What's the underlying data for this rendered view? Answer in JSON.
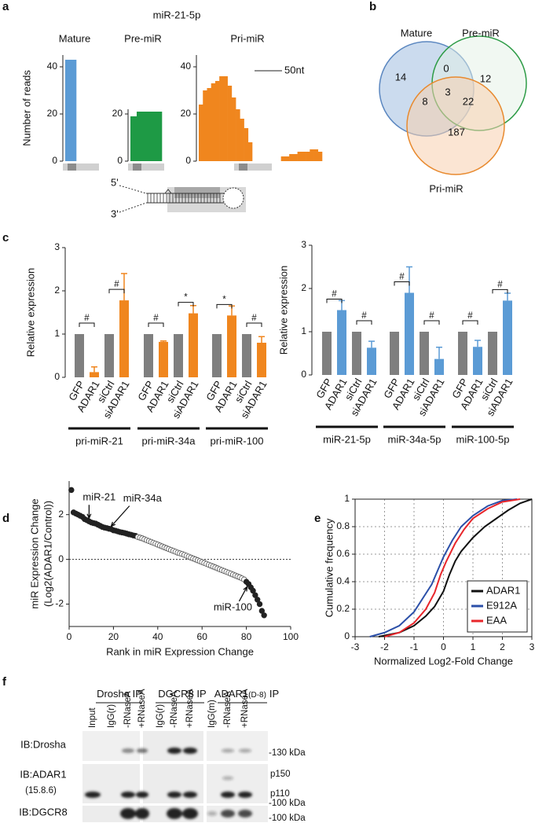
{
  "panel_labels": [
    "a",
    "b",
    "c",
    "d",
    "e",
    "f"
  ],
  "panel_a": {
    "title": "miR-21-5p",
    "scale_bar": "50nt",
    "hairpin_5": "5'",
    "hairpin_3": "3'"
  },
  "venn": {
    "sets": [
      "Mature",
      "Pre-miR",
      "Pri-miR"
    ],
    "counts": {
      "mature_only": "14",
      "mature_pre": "0",
      "pre_only": "12",
      "mature_pri": "8",
      "all": "3",
      "pre_pri": "22",
      "pri_only": "187"
    }
  },
  "chart_data": [
    {
      "type": "bar",
      "title": "Mature",
      "ylabel": "Number of reads",
      "values": [
        43
      ],
      "color": "#5b9bd5",
      "ylim": [
        0,
        45
      ],
      "yticks": [
        0,
        20,
        40
      ]
    },
    {
      "type": "bar",
      "title": "Pre-miR",
      "values": [
        19,
        21,
        21,
        21,
        21
      ],
      "color": "#1e9a45",
      "ylim": [
        0,
        22
      ],
      "yticks": [
        0,
        20
      ]
    },
    {
      "type": "bar",
      "title": "Pri-miR",
      "values": [
        24,
        30,
        31,
        33,
        34,
        36,
        36,
        32,
        27,
        22,
        18,
        14,
        8,
        0,
        0,
        0,
        0,
        0,
        0,
        0,
        2,
        2,
        3,
        3,
        4,
        4,
        4,
        5,
        5,
        4
      ],
      "color": "#f0861e",
      "ylim": [
        0,
        45
      ],
      "yticks": [
        0,
        20,
        40
      ]
    },
    {
      "type": "grouped_bar",
      "ylabel": "Relative expression",
      "groups": [
        "pri-miR-21",
        "pri-miR-34a",
        "pri-miR-100"
      ],
      "categories": [
        "GFP",
        "ADAR1",
        "siCtrl",
        "siADAR1",
        "GFP",
        "ADAR1",
        "siCtrl",
        "siADAR1",
        "GFP",
        "ADAR1",
        "siCtrl",
        "siADAR1"
      ],
      "values": [
        1,
        0.12,
        1,
        1.78,
        1,
        0.82,
        1,
        1.48,
        1,
        1.43,
        1,
        0.8
      ],
      "errors": [
        null,
        0.12,
        null,
        0.62,
        null,
        0.02,
        null,
        0.18,
        null,
        0.22,
        null,
        0.14
      ],
      "colors": [
        "#7f7f7f",
        "#f0861e",
        "#7f7f7f",
        "#f0861e",
        "#7f7f7f",
        "#f0861e",
        "#7f7f7f",
        "#f0861e",
        "#7f7f7f",
        "#f0861e",
        "#7f7f7f",
        "#f0861e"
      ],
      "significance": [
        "#",
        "#",
        "#",
        "*",
        "*",
        "#"
      ],
      "ylim": [
        0,
        3
      ],
      "yticks": [
        0,
        1,
        2,
        3
      ]
    },
    {
      "type": "grouped_bar",
      "ylabel": "Relative expression",
      "groups": [
        "miR-21-5p",
        "miR-34a-5p",
        "miR-100-5p"
      ],
      "categories": [
        "GFP",
        "ADAR1",
        "siCtrl",
        "siADAR1",
        "GFP",
        "ADAR1",
        "siCtrl",
        "siADAR1",
        "GFP",
        "ADAR1",
        "siCtrl",
        "siADAR1"
      ],
      "values": [
        1,
        1.5,
        1,
        0.63,
        1,
        1.9,
        1,
        0.37,
        1,
        0.65,
        1,
        1.72
      ],
      "errors": [
        null,
        0.22,
        null,
        0.15,
        null,
        0.6,
        null,
        0.27,
        null,
        0.15,
        null,
        0.17
      ],
      "colors": [
        "#7f7f7f",
        "#5b9bd5",
        "#7f7f7f",
        "#5b9bd5",
        "#7f7f7f",
        "#5b9bd5",
        "#7f7f7f",
        "#5b9bd5",
        "#7f7f7f",
        "#5b9bd5",
        "#7f7f7f",
        "#5b9bd5"
      ],
      "significance": [
        "#",
        "#",
        "#",
        "#",
        "#",
        "#"
      ],
      "ylim": [
        0,
        3
      ],
      "yticks": [
        0,
        1,
        2,
        3
      ]
    },
    {
      "type": "scatter",
      "xlabel": "Rank in miR Expression Change",
      "ylabel": [
        "miR Expression Change",
        "(Log2(ADAR1/Control))"
      ],
      "xlim": [
        0,
        100
      ],
      "xticks": [
        0,
        20,
        40,
        60,
        80,
        100
      ],
      "ylim": [
        -3,
        3.5
      ],
      "yticks": [
        -2,
        0,
        2
      ],
      "reference_line": 0,
      "series": [
        {
          "color": "#222222",
          "fill": true,
          "x": [
            1,
            2,
            3,
            4,
            5,
            6,
            7,
            8,
            9,
            10,
            11,
            12,
            13,
            14,
            15,
            16,
            17,
            18,
            19,
            20,
            21,
            22,
            23,
            24,
            25,
            26,
            27,
            28,
            29,
            30
          ],
          "values": [
            3.1,
            2.1,
            2.05,
            2.0,
            1.95,
            1.9,
            1.8,
            1.75,
            1.7,
            1.65,
            1.62,
            1.6,
            1.55,
            1.5,
            1.45,
            1.42,
            1.4,
            1.37,
            1.35,
            1.3,
            1.28,
            1.25,
            1.22,
            1.2,
            1.18,
            1.15,
            1.12,
            1.1,
            1.07,
            1.05
          ]
        },
        {
          "color": "#555555",
          "fill": false,
          "x": [
            31,
            32,
            33,
            34,
            35,
            36,
            37,
            38,
            39,
            40,
            41,
            42,
            43,
            44,
            45,
            46,
            47,
            48,
            49,
            50,
            51,
            52,
            53,
            54,
            55,
            56,
            57,
            58,
            59,
            60,
            61,
            62,
            63,
            64,
            65,
            66,
            67,
            68,
            69,
            70,
            71,
            72,
            73,
            74,
            75,
            76,
            77,
            78,
            79
          ],
          "values": [
            1.0,
            0.97,
            0.94,
            0.9,
            0.86,
            0.82,
            0.78,
            0.74,
            0.7,
            0.66,
            0.62,
            0.58,
            0.54,
            0.5,
            0.46,
            0.42,
            0.38,
            0.34,
            0.3,
            0.27,
            0.24,
            0.2,
            0.16,
            0.12,
            0.08,
            0.04,
            0.0,
            -0.04,
            -0.08,
            -0.12,
            -0.16,
            -0.2,
            -0.24,
            -0.28,
            -0.32,
            -0.36,
            -0.4,
            -0.44,
            -0.48,
            -0.52,
            -0.56,
            -0.6,
            -0.64,
            -0.68,
            -0.72,
            -0.76,
            -0.8,
            -0.85,
            -0.9
          ]
        },
        {
          "color": "#222222",
          "fill": true,
          "x": [
            80,
            81,
            82,
            83,
            84,
            85,
            86,
            87,
            88
          ],
          "values": [
            -1.0,
            -1.1,
            -1.25,
            -1.4,
            -1.6,
            -1.8,
            -2.0,
            -2.3,
            -2.5
          ]
        }
      ],
      "annotations": [
        {
          "text": "miR-21",
          "x": 9,
          "y": 1.7
        },
        {
          "text": "miR-34a",
          "x": 18,
          "y": 1.37
        },
        {
          "text": "miR-100",
          "x": 81,
          "y": -1.1
        }
      ]
    },
    {
      "type": "line",
      "xlabel": "Normalized Log2-Fold Change",
      "ylabel": "Cumulative frequency",
      "xlim": [
        -3,
        3
      ],
      "xticks": [
        -3,
        -2,
        -1,
        0,
        1,
        2,
        3
      ],
      "ylim": [
        0,
        1
      ],
      "yticks": [
        0,
        0.2,
        0.4,
        0.6,
        0.8,
        1
      ],
      "grid": true,
      "legend": "lower right",
      "series": [
        {
          "name": "ADAR1",
          "color": "#111111",
          "x": [
            -2.2,
            -1.5,
            -1,
            -0.6,
            -0.3,
            0,
            0.2,
            0.4,
            0.6,
            1,
            1.4,
            1.8,
            2.2,
            2.6,
            3
          ],
          "values": [
            0,
            0.03,
            0.08,
            0.15,
            0.22,
            0.33,
            0.45,
            0.55,
            0.62,
            0.72,
            0.8,
            0.86,
            0.92,
            0.97,
            1
          ]
        },
        {
          "name": "E912A",
          "color": "#2b4fa8",
          "x": [
            -2.5,
            -2,
            -1.5,
            -1,
            -0.7,
            -0.4,
            -0.2,
            0,
            0.3,
            0.6,
            1,
            1.5,
            2,
            2.5
          ],
          "values": [
            0,
            0.03,
            0.08,
            0.18,
            0.28,
            0.38,
            0.48,
            0.58,
            0.7,
            0.8,
            0.88,
            0.95,
            0.99,
            1
          ]
        },
        {
          "name": "EAA",
          "color": "#e8262b",
          "x": [
            -2,
            -1.5,
            -1,
            -0.6,
            -0.3,
            -0.1,
            0.1,
            0.4,
            0.7,
            1,
            1.5,
            2,
            2.6
          ],
          "values": [
            0,
            0.03,
            0.1,
            0.2,
            0.32,
            0.45,
            0.55,
            0.68,
            0.78,
            0.86,
            0.93,
            0.98,
            1
          ]
        }
      ]
    }
  ],
  "blot": {
    "headers": [
      [
        "Drosha IP"
      ],
      [
        "DGCR8 IP"
      ],
      [
        "ADAR1",
        "(D-8)",
        "IP"
      ]
    ],
    "lanes": [
      "Input",
      "IgG(r)",
      "-RNaseA",
      "+RNaseA",
      "IgG(r)",
      "-RNaseA",
      "+RNaseA",
      "IgG(m)",
      "-RNaseA",
      "+RNaseA"
    ],
    "rows": [
      "IB:Drosha",
      "IB:ADAR1",
      "(15.8.6)",
      "IB:DGCR8"
    ],
    "markers": [
      "-130 kDa",
      "p150",
      "p110",
      "-100 kDa",
      "-100 kDa"
    ]
  }
}
